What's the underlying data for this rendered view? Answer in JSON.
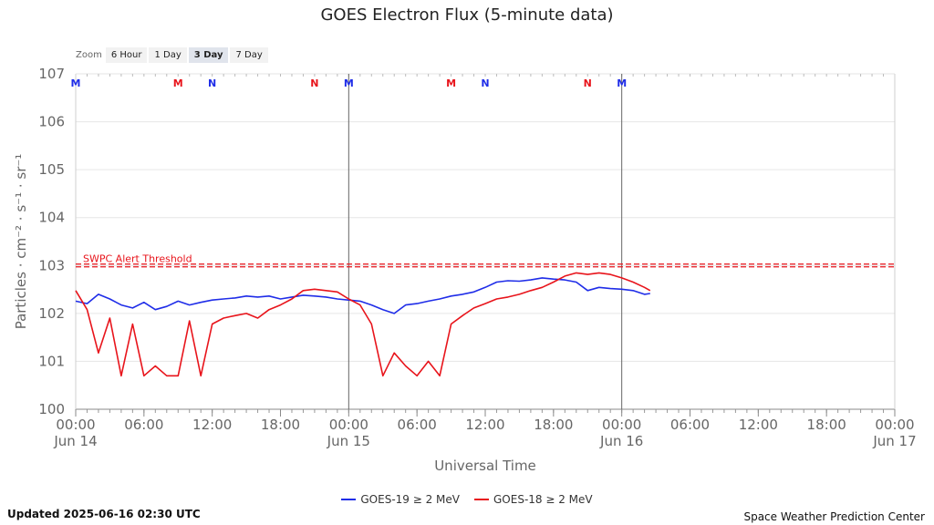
{
  "chart_data": {
    "type": "line",
    "title": "GOES Electron Flux (5-minute data)",
    "xlabel": "Universal Time",
    "ylabel": "Particles · cm⁻² · s⁻¹ · sr⁻¹",
    "y_scale": "log",
    "ylim": [
      1,
      10000000
    ],
    "y_ticks": [
      {
        "value": 1,
        "base": "10",
        "exp": "0"
      },
      {
        "value": 10,
        "base": "10",
        "exp": "1"
      },
      {
        "value": 100,
        "base": "10",
        "exp": "2"
      },
      {
        "value": 1000,
        "base": "10",
        "exp": "3"
      },
      {
        "value": 10000,
        "base": "10",
        "exp": "4"
      },
      {
        "value": 100000,
        "base": "10",
        "exp": "5"
      },
      {
        "value": 1000000,
        "base": "10",
        "exp": "6"
      },
      {
        "value": 10000000,
        "base": "10",
        "exp": "7"
      }
    ],
    "xlim": [
      "2025-06-14 00:00",
      "2025-06-17 00:00"
    ],
    "x_ticks": [
      {
        "at": "2025-06-14 00:00",
        "time": "00:00",
        "date": "Jun 14"
      },
      {
        "at": "2025-06-14 06:00",
        "time": "06:00",
        "date": ""
      },
      {
        "at": "2025-06-14 12:00",
        "time": "12:00",
        "date": ""
      },
      {
        "at": "2025-06-14 18:00",
        "time": "18:00",
        "date": ""
      },
      {
        "at": "2025-06-15 00:00",
        "time": "00:00",
        "date": "Jun 15"
      },
      {
        "at": "2025-06-15 06:00",
        "time": "06:00",
        "date": ""
      },
      {
        "at": "2025-06-15 12:00",
        "time": "12:00",
        "date": ""
      },
      {
        "at": "2025-06-15 18:00",
        "time": "18:00",
        "date": ""
      },
      {
        "at": "2025-06-16 00:00",
        "time": "00:00",
        "date": "Jun 16"
      },
      {
        "at": "2025-06-16 06:00",
        "time": "06:00",
        "date": ""
      },
      {
        "at": "2025-06-16 12:00",
        "time": "12:00",
        "date": ""
      },
      {
        "at": "2025-06-16 18:00",
        "time": "18:00",
        "date": ""
      },
      {
        "at": "2025-06-17 00:00",
        "time": "00:00",
        "date": "Jun 17"
      }
    ],
    "day_lines": [
      "2025-06-15 00:00",
      "2025-06-16 00:00"
    ],
    "threshold": {
      "value": 1000,
      "label": "SWPC Alert Threshold",
      "color": "#e8141b"
    },
    "markers": [
      {
        "at": "2025-06-14 00:00",
        "label": "M",
        "color": "#1f2de8"
      },
      {
        "at": "2025-06-14 09:00",
        "label": "M",
        "color": "#e8141b"
      },
      {
        "at": "2025-06-14 12:00",
        "label": "N",
        "color": "#1f2de8"
      },
      {
        "at": "2025-06-14 21:00",
        "label": "N",
        "color": "#e8141b"
      },
      {
        "at": "2025-06-15 00:00",
        "label": "M",
        "color": "#1f2de8"
      },
      {
        "at": "2025-06-15 09:00",
        "label": "M",
        "color": "#e8141b"
      },
      {
        "at": "2025-06-15 12:00",
        "label": "N",
        "color": "#1f2de8"
      },
      {
        "at": "2025-06-15 21:00",
        "label": "N",
        "color": "#e8141b"
      },
      {
        "at": "2025-06-16 00:00",
        "label": "M",
        "color": "#1f2de8"
      }
    ],
    "grid": true,
    "legend_position": "bottom-center",
    "series": [
      {
        "name": "GOES-19 ≥ 2 MeV",
        "color": "#1f2de8",
        "points": [
          [
            "2025-06-14 00:00",
            180
          ],
          [
            "2025-06-14 01:00",
            160
          ],
          [
            "2025-06-14 02:00",
            250
          ],
          [
            "2025-06-14 03:00",
            200
          ],
          [
            "2025-06-14 04:00",
            150
          ],
          [
            "2025-06-14 05:00",
            130
          ],
          [
            "2025-06-14 06:00",
            170
          ],
          [
            "2025-06-14 07:00",
            120
          ],
          [
            "2025-06-14 08:00",
            140
          ],
          [
            "2025-06-14 09:00",
            180
          ],
          [
            "2025-06-14 10:00",
            150
          ],
          [
            "2025-06-14 11:00",
            170
          ],
          [
            "2025-06-14 12:00",
            190
          ],
          [
            "2025-06-14 13:00",
            200
          ],
          [
            "2025-06-14 14:00",
            210
          ],
          [
            "2025-06-14 15:00",
            230
          ],
          [
            "2025-06-14 16:00",
            220
          ],
          [
            "2025-06-14 17:00",
            230
          ],
          [
            "2025-06-14 18:00",
            200
          ],
          [
            "2025-06-14 19:00",
            220
          ],
          [
            "2025-06-14 20:00",
            240
          ],
          [
            "2025-06-14 21:00",
            230
          ],
          [
            "2025-06-14 22:00",
            220
          ],
          [
            "2025-06-14 23:00",
            200
          ],
          [
            "2025-06-15 00:00",
            190
          ],
          [
            "2025-06-15 01:00",
            180
          ],
          [
            "2025-06-15 02:00",
            150
          ],
          [
            "2025-06-15 03:00",
            120
          ],
          [
            "2025-06-15 04:00",
            100
          ],
          [
            "2025-06-15 05:00",
            150
          ],
          [
            "2025-06-15 06:00",
            160
          ],
          [
            "2025-06-15 07:00",
            180
          ],
          [
            "2025-06-15 08:00",
            200
          ],
          [
            "2025-06-15 09:00",
            230
          ],
          [
            "2025-06-15 10:00",
            250
          ],
          [
            "2025-06-15 11:00",
            280
          ],
          [
            "2025-06-15 12:00",
            350
          ],
          [
            "2025-06-15 13:00",
            450
          ],
          [
            "2025-06-15 14:00",
            480
          ],
          [
            "2025-06-15 15:00",
            470
          ],
          [
            "2025-06-15 16:00",
            500
          ],
          [
            "2025-06-15 17:00",
            550
          ],
          [
            "2025-06-15 18:00",
            520
          ],
          [
            "2025-06-15 19:00",
            500
          ],
          [
            "2025-06-15 20:00",
            450
          ],
          [
            "2025-06-15 21:00",
            300
          ],
          [
            "2025-06-15 22:00",
            350
          ],
          [
            "2025-06-15 23:00",
            330
          ],
          [
            "2025-06-16 00:00",
            320
          ],
          [
            "2025-06-16 01:00",
            300
          ],
          [
            "2025-06-16 02:00",
            250
          ],
          [
            "2025-06-16 02:30",
            260
          ]
        ]
      },
      {
        "name": "GOES-18 ≥ 2 MeV",
        "color": "#e8141b",
        "points": [
          [
            "2025-06-14 00:00",
            300
          ],
          [
            "2025-06-14 01:00",
            120
          ],
          [
            "2025-06-14 02:00",
            15
          ],
          [
            "2025-06-14 03:00",
            80
          ],
          [
            "2025-06-14 04:00",
            5
          ],
          [
            "2025-06-14 05:00",
            60
          ],
          [
            "2025-06-14 06:00",
            5
          ],
          [
            "2025-06-14 07:00",
            8
          ],
          [
            "2025-06-14 08:00",
            5
          ],
          [
            "2025-06-14 09:00",
            5
          ],
          [
            "2025-06-14 10:00",
            70
          ],
          [
            "2025-06-14 11:00",
            5
          ],
          [
            "2025-06-14 12:00",
            60
          ],
          [
            "2025-06-14 13:00",
            80
          ],
          [
            "2025-06-14 14:00",
            90
          ],
          [
            "2025-06-14 15:00",
            100
          ],
          [
            "2025-06-14 16:00",
            80
          ],
          [
            "2025-06-14 17:00",
            120
          ],
          [
            "2025-06-14 18:00",
            150
          ],
          [
            "2025-06-14 19:00",
            200
          ],
          [
            "2025-06-14 20:00",
            300
          ],
          [
            "2025-06-14 21:00",
            320
          ],
          [
            "2025-06-14 22:00",
            300
          ],
          [
            "2025-06-14 23:00",
            280
          ],
          [
            "2025-06-15 00:00",
            200
          ],
          [
            "2025-06-15 01:00",
            150
          ],
          [
            "2025-06-15 02:00",
            60
          ],
          [
            "2025-06-15 03:00",
            5
          ],
          [
            "2025-06-15 04:00",
            15
          ],
          [
            "2025-06-15 05:00",
            8
          ],
          [
            "2025-06-15 06:00",
            5
          ],
          [
            "2025-06-15 07:00",
            10
          ],
          [
            "2025-06-15 08:00",
            5
          ],
          [
            "2025-06-15 09:00",
            60
          ],
          [
            "2025-06-15 10:00",
            90
          ],
          [
            "2025-06-15 11:00",
            130
          ],
          [
            "2025-06-15 12:00",
            160
          ],
          [
            "2025-06-15 13:00",
            200
          ],
          [
            "2025-06-15 14:00",
            220
          ],
          [
            "2025-06-15 15:00",
            250
          ],
          [
            "2025-06-15 16:00",
            300
          ],
          [
            "2025-06-15 17:00",
            350
          ],
          [
            "2025-06-15 18:00",
            450
          ],
          [
            "2025-06-15 19:00",
            600
          ],
          [
            "2025-06-15 20:00",
            700
          ],
          [
            "2025-06-15 21:00",
            650
          ],
          [
            "2025-06-15 22:00",
            700
          ],
          [
            "2025-06-15 23:00",
            650
          ],
          [
            "2025-06-16 00:00",
            550
          ],
          [
            "2025-06-16 01:00",
            450
          ],
          [
            "2025-06-16 02:00",
            350
          ],
          [
            "2025-06-16 02:30",
            300
          ]
        ]
      }
    ]
  },
  "zoom": {
    "label": "Zoom",
    "options": [
      "6 Hour",
      "1 Day",
      "3 Day",
      "7 Day"
    ],
    "selected": "3 Day"
  },
  "legend": {
    "items": [
      {
        "label": "GOES-19 ≥ 2 MeV",
        "color": "#1f2de8"
      },
      {
        "label": "GOES-18 ≥ 2 MeV",
        "color": "#e8141b"
      }
    ]
  },
  "footer": {
    "updated": "Updated 2025-06-16 02:30 UTC",
    "credit": "Space Weather Prediction Center"
  }
}
